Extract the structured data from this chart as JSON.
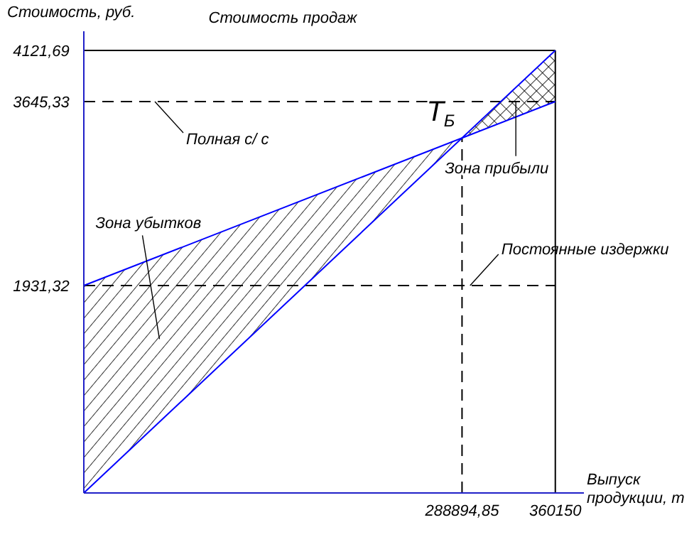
{
  "chart_data": {
    "type": "line",
    "title": "Стоимость продаж",
    "ylabel": "Стоимость, руб.",
    "xlabel": "Выпуск продукции, т",
    "series": [
      {
        "values": [
          0,
          4121.69
        ],
        "color": "#0000ff"
      },
      {
        "values": [
          1931.32,
          3645.33
        ],
        "color": "#0000ff"
      }
    ],
    "x": [
      0,
      360150
    ],
    "xlim": [
      0,
      382000
    ],
    "ylim": [
      0,
      4300
    ],
    "xticks": [
      {
        "value": 288894.85,
        "label": "288894,85"
      },
      360150
    ],
    "yticks": [
      {
        "value": 1931.32,
        "label": "1931,32"
      },
      {
        "value": 3645.33,
        "label": "3645,33"
      },
      {
        "value": 4121.69,
        "label": "4121,69"
      }
    ],
    "ref_lines": [
      {
        "axis": "y",
        "value": 1931.32,
        "label": "Постоянные издержки",
        "line_style": "dashed",
        "color": "#000000"
      },
      {
        "axis": "y",
        "value": 3645.33,
        "label": "Полная с/ с",
        "line_style": "dashed",
        "color": "#000000"
      },
      {
        "axis": "y",
        "value": 4121.69,
        "line_style": "solid",
        "color": "#000000"
      },
      {
        "axis": "x",
        "value": 360150,
        "line_style": "solid",
        "color": "#000000"
      },
      {
        "axis": "x",
        "value": 288894.85,
        "line_style": "dashed",
        "color": "#000000"
      }
    ],
    "annotations": [
      {
        "text": "T$_{Б}$",
        "x": 288894.85,
        "y": 3305
      },
      "Зона убытков",
      {
        "text": "Зона прибыли",
        "x": 330000,
        "y": 3640
      }
    ],
    "grid": false,
    "marker": "none",
    "line_style": "solid"
  }
}
